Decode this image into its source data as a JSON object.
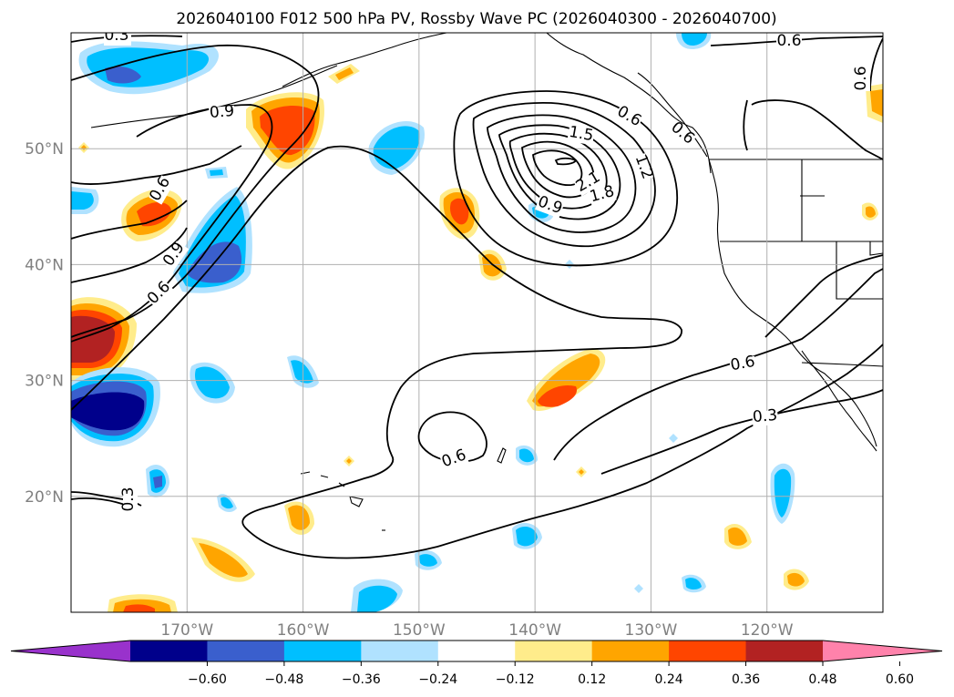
{
  "chart_data": {
    "type": "map-contour",
    "title": "2026040100 F012 500 hPa PV, Rossby Wave PC (2026040300 - 2026040700)",
    "lon_range": [
      -180,
      -110
    ],
    "lat_range": [
      10,
      60
    ],
    "x_ticks": [
      "170°W",
      "160°W",
      "150°W",
      "140°W",
      "130°W",
      "120°W"
    ],
    "y_ticks": [
      "50°N",
      "40°N",
      "30°N",
      "20°N"
    ],
    "colorbar": {
      "levels": [
        "−0.60",
        "−0.48",
        "−0.36",
        "−0.24",
        "−0.12",
        "0.12",
        "0.24",
        "0.36",
        "0.48",
        "0.60"
      ],
      "colors": [
        "#9932cc",
        "#00008b",
        "#3a5fcd",
        "#00bfff",
        "#b0e2ff",
        "#ffffff",
        "#ffec8b",
        "#ffa500",
        "#ff4500",
        "#b22222",
        "#ff82ab"
      ]
    },
    "contour_labels": [
      "0.3",
      "0.6",
      "0.9",
      "0.6",
      "0.9",
      "0.6",
      "0.6",
      "1.5",
      "1.2",
      "2.1",
      "1.8",
      "0.9",
      "0.6",
      "0.6",
      "0.6",
      "0.3",
      "0.3",
      "0.6",
      "0.9"
    ]
  }
}
